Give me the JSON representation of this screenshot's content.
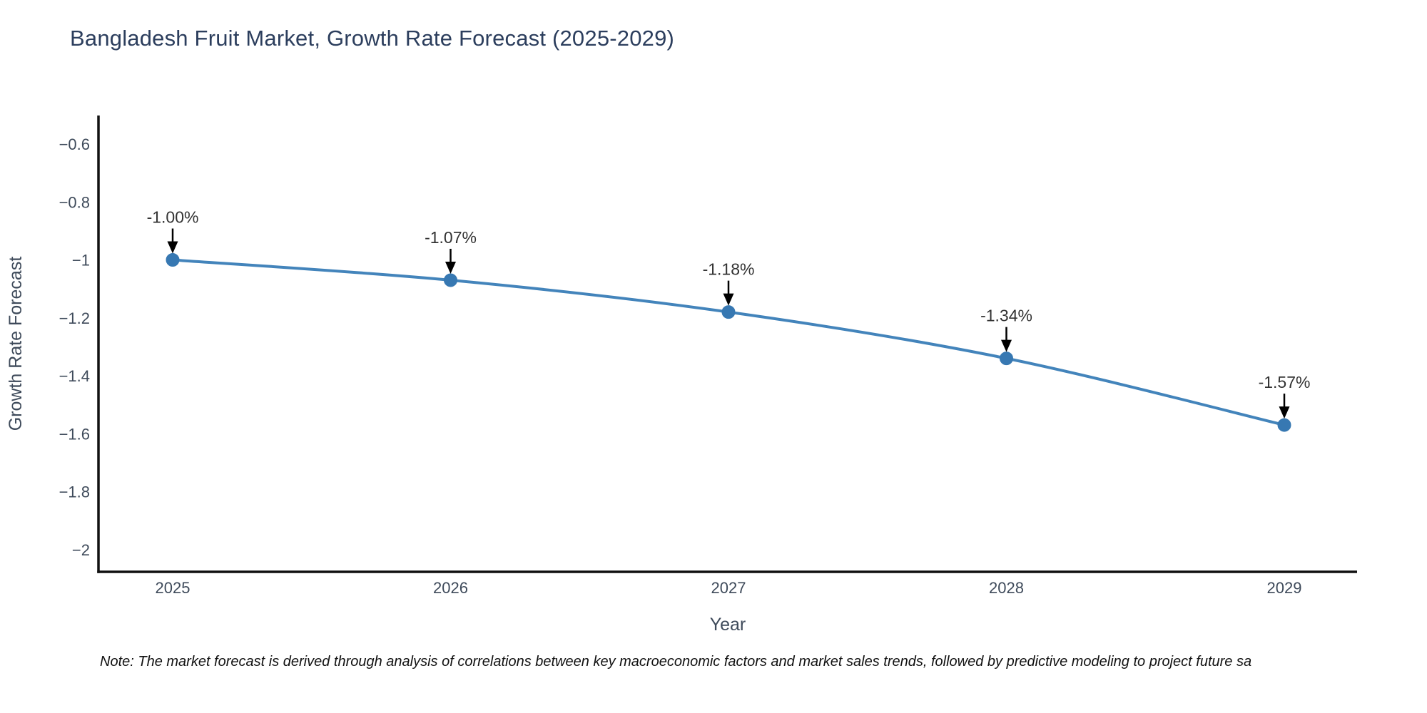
{
  "page": {
    "background": "#ffffff"
  },
  "header": {
    "title": "Bangladesh Fruit Market, Growth Rate Forecast (2025-2029)"
  },
  "footer": {
    "note": "Note: The market forecast is derived through analysis of correlations between key macroeconomic factors and market sales trends, followed by predictive modeling to project future sa"
  },
  "chart_data": {
    "type": "line",
    "title": "Bangladesh Fruit Market, Growth Rate Forecast (2025-2029)",
    "xlabel": "Year",
    "ylabel": "Growth Rate Forecast",
    "x": [
      2025,
      2026,
      2027,
      2028,
      2029
    ],
    "x_tick_labels": [
      "2025",
      "2026",
      "2027",
      "2028",
      "2029"
    ],
    "series": [
      {
        "name": "Growth Rate Forecast",
        "values": [
          -1.0,
          -1.07,
          -1.18,
          -1.34,
          -1.57
        ]
      }
    ],
    "point_labels": [
      "-1.00%",
      "-1.07%",
      "-1.18%",
      "-1.34%",
      "-1.57%"
    ],
    "y_tick_values": [
      -0.6,
      -0.8,
      -1.0,
      -1.2,
      -1.4,
      -1.6,
      -1.8,
      -2.0
    ],
    "y_tick_labels": [
      "−0.6",
      "−0.8",
      "−1",
      "−1.2",
      "−1.4",
      "−1.6",
      "−1.8",
      "−2"
    ],
    "ylim": [
      -0.5,
      -2.08
    ],
    "xlim": [
      2024.73,
      2029.26
    ],
    "grid": false,
    "legend": "none",
    "annotations_have_arrows": true,
    "colors": {
      "line": "#4384bb",
      "marker": "#3778b2",
      "axis_spine": "#111111",
      "tick_text": "#3e4a5a",
      "axis_title_text": "#3e4a5a",
      "title_text": "#2c3e5d",
      "annotation_text": "#333333",
      "arrow": "#000000"
    }
  }
}
